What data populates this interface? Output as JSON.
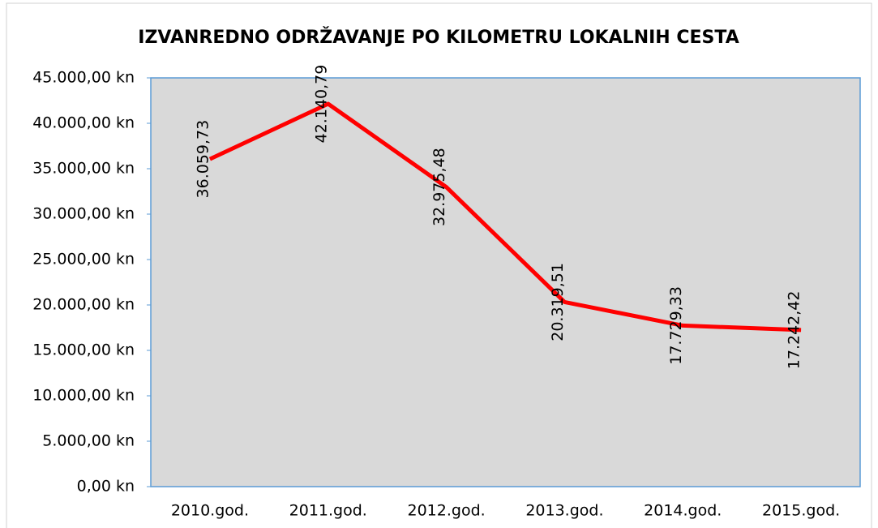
{
  "chart_data": {
    "type": "line",
    "title": "IZVANREDNO ODRŽAVANJE PO KILOMETRU LOKALNIH CESTA",
    "categories": [
      "2010.god.",
      "2011.god.",
      "2012.god.",
      "2013.god.",
      "2014.god.",
      "2015.god."
    ],
    "series": [
      {
        "name": null,
        "color": "#ff0000",
        "values": [
          36059.73,
          42140.79,
          32975.48,
          20319.51,
          17729.33,
          17242.42
        ],
        "value_labels": [
          "36.059,73",
          "42.140,79",
          "32.975,48",
          "20.319,51",
          "17.729,33",
          "17.242,42"
        ]
      }
    ],
    "ylim": [
      0,
      45000
    ],
    "yticks": [
      {
        "value": 0,
        "label": "0,00 kn"
      },
      {
        "value": 5000,
        "label": "5.000,00 kn"
      },
      {
        "value": 10000,
        "label": "10.000,00 kn"
      },
      {
        "value": 15000,
        "label": "15.000,00 kn"
      },
      {
        "value": 20000,
        "label": "20.000,00 kn"
      },
      {
        "value": 25000,
        "label": "25.000,00 kn"
      },
      {
        "value": 30000,
        "label": "30.000,00 kn"
      },
      {
        "value": 35000,
        "label": "35.000,00 kn"
      },
      {
        "value": 40000,
        "label": "40.000,00 kn"
      },
      {
        "value": 45000,
        "label": "45.000,00 kn"
      }
    ],
    "grid": false
  }
}
